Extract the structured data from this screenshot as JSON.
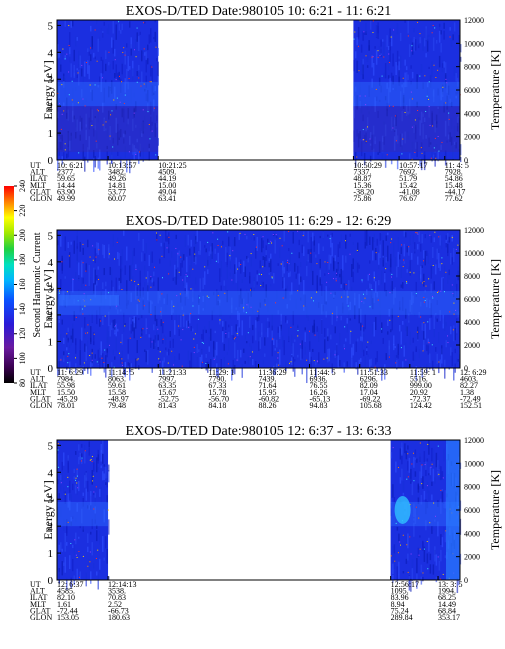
{
  "chart_data": [
    {
      "type": "heatmap",
      "title": "EXOS-D/TED   Date:980105  10: 6:21 - 11: 6:21",
      "ylabel": "Energy [eV]",
      "ylabel_right": "Temperature [K]",
      "ylim": [
        0,
        5.2
      ],
      "ylim_right": [
        0,
        12000
      ],
      "yticks": [
        "0",
        "1",
        "2",
        "3",
        "4",
        "5"
      ],
      "yticks_right": [
        "0",
        "2000",
        "4000",
        "6000",
        "8000",
        "10000",
        "12000"
      ],
      "t_start_min": 0,
      "t_end_min": 60,
      "data_segments_min": [
        [
          0,
          15.07
        ],
        [
          44.13,
          60
        ]
      ],
      "row_labels": [
        "UT",
        "ALT",
        "ILAT",
        "MLT",
        "GLAT",
        "GLON"
      ],
      "ephemeris": [
        {
          "t": 0.0,
          "values": [
            "10: 6:21",
            "2377.",
            "59.65",
            "14.44",
            "63.90",
            "49.99"
          ]
        },
        {
          "t": 7.6,
          "values": [
            "10:13:57",
            "3482.",
            "49.26",
            "14.81",
            "53.77",
            "60.07"
          ]
        },
        {
          "t": 15.07,
          "values": [
            "10:21:25",
            "4509.",
            "44.19",
            "15.00",
            "49.04",
            "63.41"
          ]
        },
        {
          "t": 44.13,
          "values": [
            "10:50:29",
            "7337.",
            "48.87",
            "15.36",
            "-38.20",
            "75.86"
          ]
        },
        {
          "t": 50.93,
          "values": [
            "10:57:17",
            "7692.",
            "51.79",
            "15.42",
            "-41.08",
            "76.67"
          ]
        },
        {
          "t": 57.73,
          "values": [
            "11: 4: 5",
            "7928.",
            "54.86",
            "15.48",
            "-44.17",
            "77.62"
          ]
        }
      ]
    },
    {
      "type": "heatmap",
      "title": "EXOS-D/TED   Date:980105  11: 6:29 - 12: 6:29",
      "ylabel": "Energy [eV]",
      "ylabel_right": "Temperature [K]",
      "ylim": [
        0,
        5.2
      ],
      "ylim_right": [
        0,
        12000
      ],
      "yticks": [
        "0",
        "1",
        "2",
        "3",
        "4",
        "5"
      ],
      "yticks_right": [
        "0",
        "2000",
        "4000",
        "6000",
        "8000",
        "10000",
        "12000"
      ],
      "t_start_min": 0,
      "t_end_min": 60,
      "data_segments_min": [
        [
          0,
          60
        ]
      ],
      "row_labels": [
        "UT",
        "ALT",
        "ILAT",
        "MLT",
        "GLAT",
        "GLON"
      ],
      "ephemeris": [
        {
          "t": 0.0,
          "values": [
            "11: 6:29",
            "7984.",
            "55.98",
            "15.50",
            "-45.29",
            "78.01"
          ]
        },
        {
          "t": 7.6,
          "values": [
            "11:14: 5",
            "8063.",
            "59.61",
            "15.58",
            "-48.97",
            "79.48"
          ]
        },
        {
          "t": 15.07,
          "values": [
            "11:21:33",
            "7997.",
            "63.35",
            "15.67",
            "-52.75",
            "81.43"
          ]
        },
        {
          "t": 22.53,
          "values": [
            "11:29: 1",
            "7790.",
            "67.33",
            "15.78",
            "-56.70",
            "84.18"
          ]
        },
        {
          "t": 30.0,
          "values": [
            "11:36:29",
            "7439.",
            "71.64",
            "15.95",
            "-60.82",
            "88.26"
          ]
        },
        {
          "t": 37.6,
          "values": [
            "11:44: 5",
            "6936.",
            "76.55",
            "16.26",
            "-65.13",
            "94.83"
          ]
        },
        {
          "t": 45.07,
          "values": [
            "11:51:33",
            "6296.",
            "82.09",
            "17.04",
            "-69.22",
            "105.68"
          ]
        },
        {
          "t": 52.53,
          "values": [
            "11:59: 1",
            "5516.",
            "999.00",
            "20.92",
            "-72.37",
            "124.42"
          ]
        },
        {
          "t": 60.0,
          "values": [
            "12: 6:29",
            "4603.",
            "82.27",
            "1.38",
            "-72.49",
            "152.51"
          ]
        }
      ]
    },
    {
      "type": "heatmap",
      "title": "EXOS-D/TED   Date:980105  12: 6:37 - 13: 6:33",
      "ylabel": "Energy [eV]",
      "ylabel_right": "Temperature [K]",
      "ylim": [
        0,
        5.2
      ],
      "ylim_right": [
        0,
        12000
      ],
      "yticks": [
        "0",
        "1",
        "2",
        "3",
        "4",
        "5"
      ],
      "yticks_right": [
        "0",
        "2000",
        "4000",
        "6000",
        "8000",
        "10000",
        "12000"
      ],
      "t_start_min": 0,
      "t_end_min": 60,
      "data_segments_min": [
        [
          0,
          7.6
        ],
        [
          49.67,
          60
        ]
      ],
      "row_labels": [
        "UT",
        "ALT",
        "ILAT",
        "MLT",
        "GLAT",
        "GLON"
      ],
      "ephemeris": [
        {
          "t": 0.0,
          "values": [
            "12: 6:37",
            "4585.",
            "82.10",
            "1.61",
            "-72.44",
            "153.05"
          ]
        },
        {
          "t": 7.6,
          "values": [
            "12:14:13",
            "3538.",
            "70.83",
            "2.52",
            "-66.73",
            "180.63"
          ]
        },
        {
          "t": 49.67,
          "values": [
            "12:56:17",
            "1095.",
            "83.96",
            "8.94",
            "75.24",
            "289.84"
          ]
        },
        {
          "t": 56.73,
          "values": [
            "13: 3: 5",
            "1994.",
            "68.25",
            "14.49",
            "68.84",
            "353.17"
          ]
        }
      ]
    }
  ],
  "colorbar": {
    "label": "Second Harmonic Current",
    "ticks": [
      "80",
      "100",
      "120",
      "140",
      "160",
      "180",
      "200",
      "220",
      "240"
    ],
    "range": [
      80,
      240
    ]
  }
}
